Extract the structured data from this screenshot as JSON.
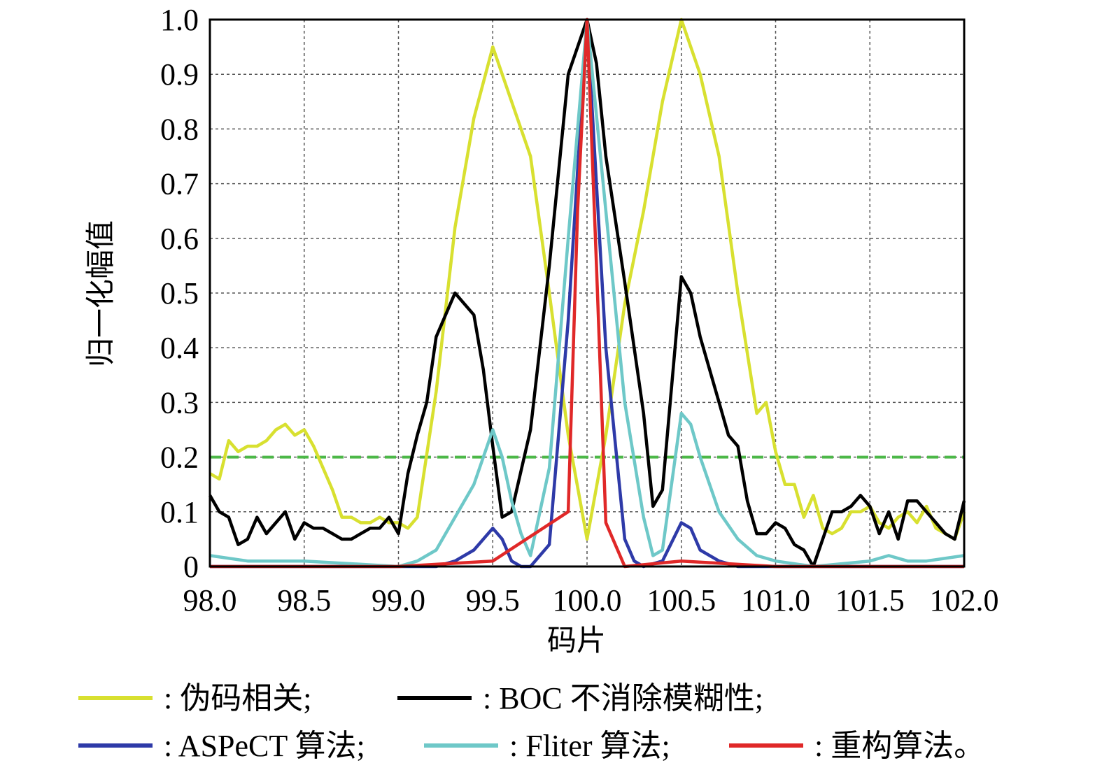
{
  "chart_data": {
    "type": "line",
    "xlabel": "码片",
    "ylabel": "归一化幅值",
    "xlim": [
      98.0,
      102.0
    ],
    "ylim": [
      0,
      1.0
    ],
    "xticks": [
      98.0,
      98.5,
      99.0,
      99.5,
      100.0,
      100.5,
      101.0,
      101.5,
      102.0
    ],
    "xtick_labels": [
      "98.0",
      "98.5",
      "99.0",
      "99.5",
      "100.0",
      "100.5",
      "101.0",
      "101.5",
      "102.0"
    ],
    "yticks": [
      0,
      0.1,
      0.2,
      0.3,
      0.4,
      0.5,
      0.6,
      0.7,
      0.8,
      0.9,
      1.0
    ],
    "ytick_labels": [
      "0",
      "0.1",
      "0.2",
      "0.3",
      "0.4",
      "0.5",
      "0.6",
      "0.7",
      "0.8",
      "0.9",
      "1.0"
    ],
    "grid": true,
    "legend_position": "bottom",
    "threshold": {
      "y": 0.2,
      "color": "#4cb848",
      "style": "dashed"
    },
    "series": [
      {
        "name": ": 伪码相关;",
        "color": "#d8e030",
        "x": [
          98.0,
          98.05,
          98.1,
          98.15,
          98.2,
          98.25,
          98.3,
          98.35,
          98.4,
          98.45,
          98.5,
          98.55,
          98.6,
          98.65,
          98.7,
          98.75,
          98.8,
          98.85,
          98.9,
          98.95,
          99.0,
          99.05,
          99.1,
          99.2,
          99.3,
          99.4,
          99.5,
          99.6,
          99.7,
          99.8,
          99.9,
          100.0,
          100.1,
          100.2,
          100.3,
          100.4,
          100.5,
          100.6,
          100.7,
          100.8,
          100.9,
          100.95,
          101.0,
          101.05,
          101.1,
          101.15,
          101.2,
          101.25,
          101.3,
          101.35,
          101.4,
          101.45,
          101.5,
          101.55,
          101.6,
          101.65,
          101.7,
          101.75,
          101.8,
          101.85,
          101.9,
          101.95,
          102.0
        ],
        "y": [
          0.17,
          0.16,
          0.23,
          0.21,
          0.22,
          0.22,
          0.23,
          0.25,
          0.26,
          0.24,
          0.25,
          0.22,
          0.18,
          0.14,
          0.09,
          0.09,
          0.08,
          0.08,
          0.09,
          0.08,
          0.08,
          0.07,
          0.09,
          0.32,
          0.62,
          0.82,
          0.95,
          0.85,
          0.75,
          0.5,
          0.24,
          0.05,
          0.24,
          0.48,
          0.65,
          0.85,
          1.0,
          0.9,
          0.75,
          0.5,
          0.28,
          0.3,
          0.21,
          0.15,
          0.15,
          0.09,
          0.13,
          0.07,
          0.06,
          0.07,
          0.1,
          0.1,
          0.11,
          0.08,
          0.07,
          0.09,
          0.1,
          0.08,
          0.11,
          0.07,
          0.06,
          0.05,
          0.1
        ]
      },
      {
        "name": ": BOC 不消除模糊性;",
        "color": "#000000",
        "x": [
          98.0,
          98.05,
          98.1,
          98.15,
          98.2,
          98.25,
          98.3,
          98.35,
          98.4,
          98.45,
          98.5,
          98.55,
          98.6,
          98.65,
          98.7,
          98.75,
          98.8,
          98.85,
          98.9,
          98.95,
          99.0,
          99.05,
          99.1,
          99.15,
          99.2,
          99.3,
          99.4,
          99.45,
          99.5,
          99.55,
          99.6,
          99.7,
          99.8,
          99.9,
          100.0,
          100.05,
          100.1,
          100.2,
          100.3,
          100.35,
          100.4,
          100.5,
          100.55,
          100.6,
          100.7,
          100.75,
          100.8,
          100.85,
          100.9,
          100.95,
          101.0,
          101.05,
          101.1,
          101.15,
          101.2,
          101.25,
          101.3,
          101.35,
          101.4,
          101.45,
          101.5,
          101.55,
          101.6,
          101.65,
          101.7,
          101.75,
          101.8,
          101.85,
          101.9,
          101.95,
          102.0
        ],
        "y": [
          0.13,
          0.1,
          0.09,
          0.04,
          0.05,
          0.09,
          0.06,
          0.08,
          0.1,
          0.05,
          0.08,
          0.07,
          0.07,
          0.06,
          0.05,
          0.05,
          0.06,
          0.07,
          0.07,
          0.09,
          0.06,
          0.17,
          0.24,
          0.3,
          0.42,
          0.5,
          0.46,
          0.36,
          0.22,
          0.09,
          0.1,
          0.25,
          0.55,
          0.9,
          1.0,
          0.92,
          0.75,
          0.52,
          0.28,
          0.11,
          0.14,
          0.53,
          0.5,
          0.42,
          0.3,
          0.24,
          0.22,
          0.12,
          0.06,
          0.06,
          0.08,
          0.07,
          0.04,
          0.03,
          0.0,
          0.05,
          0.1,
          0.1,
          0.11,
          0.13,
          0.11,
          0.06,
          0.1,
          0.05,
          0.12,
          0.12,
          0.1,
          0.08,
          0.06,
          0.05,
          0.12
        ]
      },
      {
        "name": ": ASPeCT 算法;",
        "color": "#2e3aa8",
        "x": [
          98.0,
          98.5,
          99.0,
          99.2,
          99.3,
          99.4,
          99.5,
          99.55,
          99.6,
          99.65,
          99.7,
          99.8,
          99.9,
          100.0,
          100.1,
          100.2,
          100.25,
          100.3,
          100.4,
          100.5,
          100.55,
          100.6,
          100.7,
          100.8,
          101.0,
          102.0
        ],
        "y": [
          0.0,
          0.0,
          0.0,
          0.0,
          0.01,
          0.03,
          0.07,
          0.05,
          0.01,
          0.0,
          0.0,
          0.04,
          0.45,
          1.0,
          0.4,
          0.05,
          0.01,
          0.0,
          0.01,
          0.08,
          0.07,
          0.03,
          0.01,
          0.0,
          0.0,
          0.0
        ]
      },
      {
        "name": ": Fliter 算法;",
        "color": "#6ec8c8",
        "x": [
          98.0,
          98.2,
          98.5,
          99.0,
          99.1,
          99.2,
          99.3,
          99.4,
          99.5,
          99.55,
          99.6,
          99.65,
          99.7,
          99.8,
          99.9,
          100.0,
          100.1,
          100.2,
          100.3,
          100.35,
          100.4,
          100.5,
          100.55,
          100.6,
          100.7,
          100.8,
          100.9,
          101.0,
          101.2,
          101.5,
          101.6,
          101.7,
          101.8,
          102.0
        ],
        "y": [
          0.02,
          0.01,
          0.01,
          0.0,
          0.01,
          0.03,
          0.09,
          0.15,
          0.25,
          0.2,
          0.12,
          0.06,
          0.02,
          0.18,
          0.6,
          1.0,
          0.65,
          0.3,
          0.09,
          0.02,
          0.03,
          0.28,
          0.26,
          0.2,
          0.1,
          0.05,
          0.02,
          0.01,
          0.0,
          0.01,
          0.02,
          0.01,
          0.01,
          0.02
        ]
      },
      {
        "name": ": 重构算法。",
        "color": "#e02828",
        "x": [
          98.0,
          99.0,
          99.5,
          99.9,
          99.95,
          100.0,
          100.05,
          100.1,
          100.2,
          100.5,
          101.0,
          102.0
        ],
        "y": [
          0.0,
          0.0,
          0.01,
          0.1,
          0.65,
          1.0,
          0.55,
          0.08,
          0.0,
          0.01,
          0.0,
          0.0
        ]
      }
    ]
  }
}
